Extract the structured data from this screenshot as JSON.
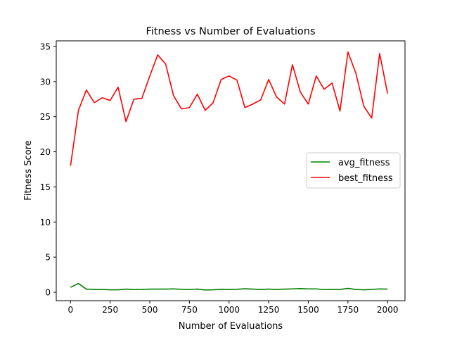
{
  "chart_data": {
    "type": "line",
    "title": "Fitness vs Number of Evaluations",
    "xlabel": "Number of Evaluations",
    "ylabel": "Fitness Score",
    "xlim": [
      -90,
      2110
    ],
    "ylim": [
      -1.2,
      35.8
    ],
    "x_ticks": [
      0,
      250,
      500,
      750,
      1000,
      1250,
      1500,
      1750,
      2000
    ],
    "y_ticks": [
      0,
      5,
      10,
      15,
      20,
      25,
      30,
      35
    ],
    "grid": false,
    "legend_position": "center-right",
    "x": [
      0,
      50,
      100,
      150,
      200,
      250,
      300,
      350,
      400,
      450,
      500,
      550,
      600,
      650,
      700,
      750,
      800,
      850,
      900,
      950,
      1000,
      1050,
      1100,
      1150,
      1200,
      1250,
      1300,
      1350,
      1400,
      1450,
      1500,
      1550,
      1600,
      1650,
      1700,
      1750,
      1800,
      1850,
      1900,
      1950,
      2000
    ],
    "series": [
      {
        "name": "avg_fitness",
        "color": "#008000",
        "values": [
          0.7,
          1.25,
          0.45,
          0.4,
          0.4,
          0.35,
          0.35,
          0.45,
          0.38,
          0.4,
          0.45,
          0.45,
          0.45,
          0.48,
          0.42,
          0.38,
          0.45,
          0.32,
          0.35,
          0.42,
          0.4,
          0.42,
          0.5,
          0.45,
          0.4,
          0.45,
          0.4,
          0.45,
          0.48,
          0.52,
          0.48,
          0.48,
          0.38,
          0.4,
          0.4,
          0.55,
          0.4,
          0.35,
          0.4,
          0.48,
          0.45
        ]
      },
      {
        "name": "best_fitness",
        "color": "#ff0000",
        "values": [
          18.0,
          25.9,
          28.8,
          27.0,
          27.7,
          27.3,
          29.2,
          24.3,
          27.5,
          27.6,
          30.8,
          33.8,
          32.5,
          28.0,
          26.1,
          26.3,
          28.2,
          25.9,
          27.0,
          30.3,
          30.8,
          30.2,
          26.3,
          26.8,
          27.4,
          30.3,
          27.8,
          26.8,
          32.4,
          28.5,
          26.8,
          30.8,
          28.9,
          29.8,
          25.8,
          34.2,
          31.2,
          26.5,
          24.8,
          34.0,
          28.3
        ]
      }
    ]
  }
}
